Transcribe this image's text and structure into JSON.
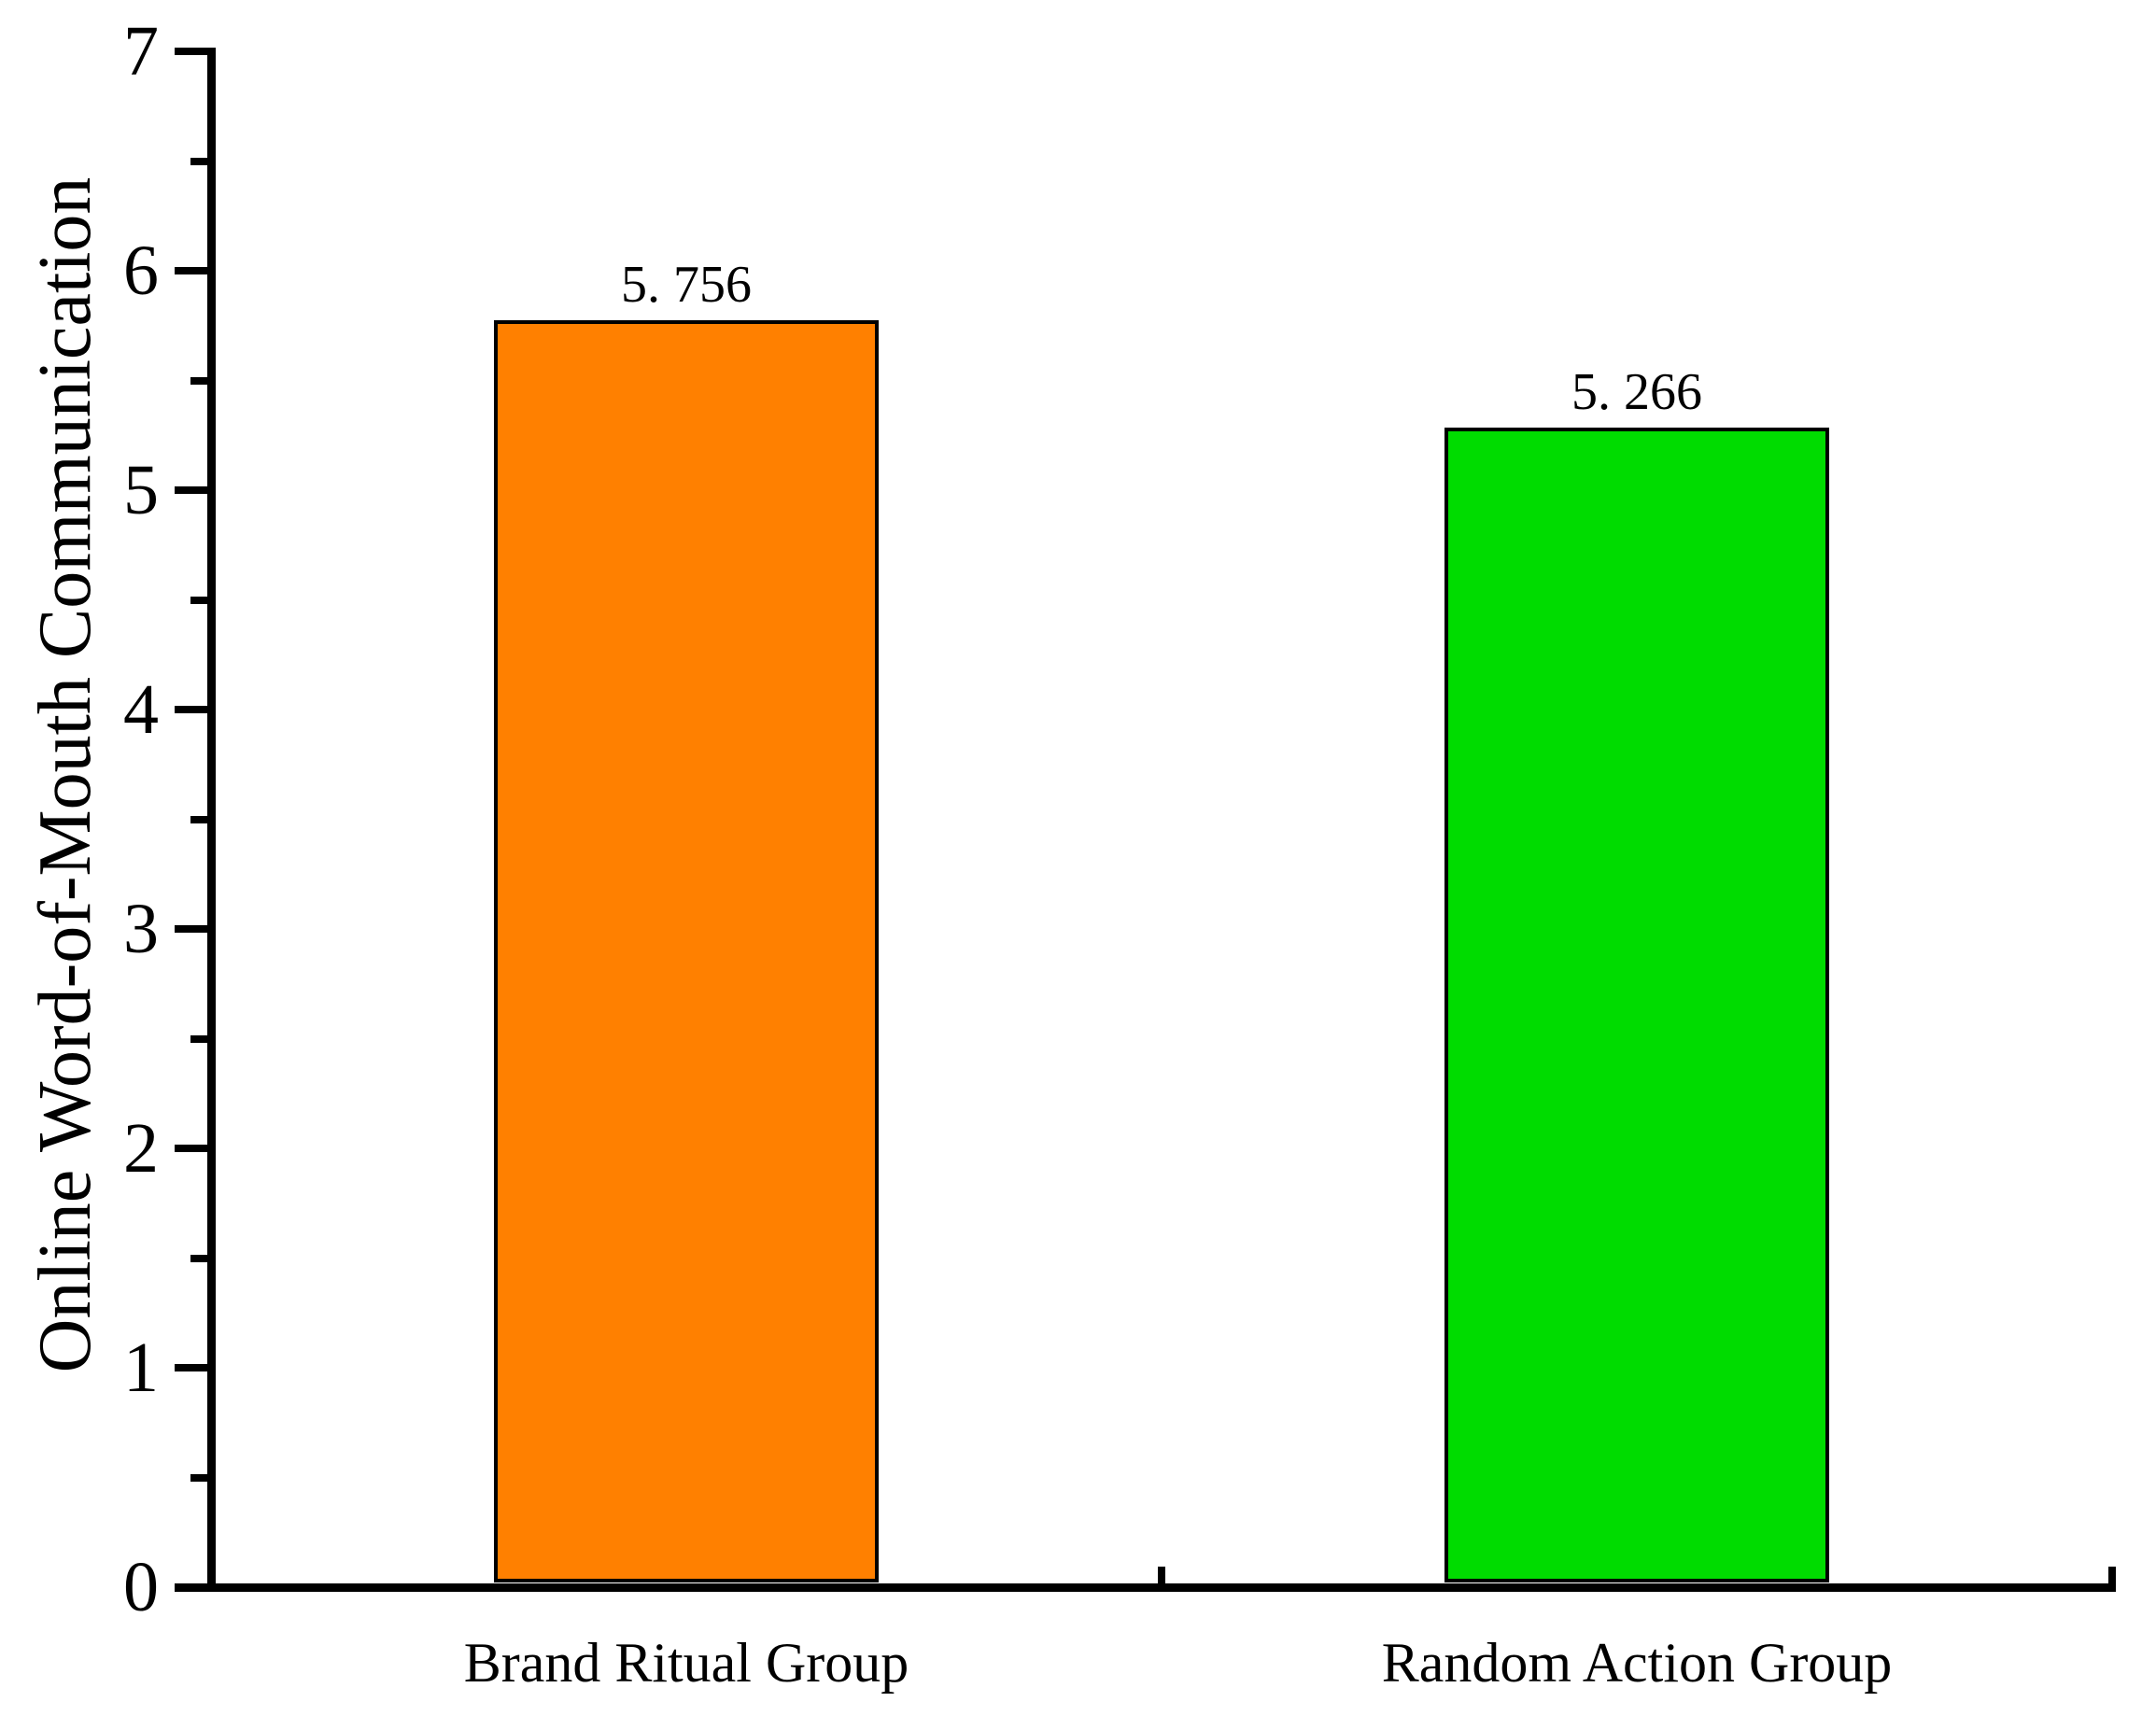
{
  "chart_data": {
    "type": "bar",
    "ylabel": "Online Word-of-Mouth Communication",
    "xlabel": "",
    "categories": [
      "Brand Ritual Group",
      "Random Action Group"
    ],
    "values": [
      5.756,
      5.266
    ],
    "value_labels": [
      "5. 756",
      "5. 266"
    ],
    "bar_colors": [
      "#FF8000",
      "#00DC00"
    ],
    "bar_border_color": "#000000",
    "axis_color": "#000000",
    "text_color": "#000000",
    "ylim": [
      0,
      7
    ],
    "y_major_ticks": [
      0,
      1,
      2,
      3,
      4,
      5,
      6,
      7
    ],
    "y_minor_ticks": [
      0.5,
      1.5,
      2.5,
      3.5,
      4.5,
      5.5,
      6.5
    ],
    "grid": false,
    "legend_visible": false
  }
}
